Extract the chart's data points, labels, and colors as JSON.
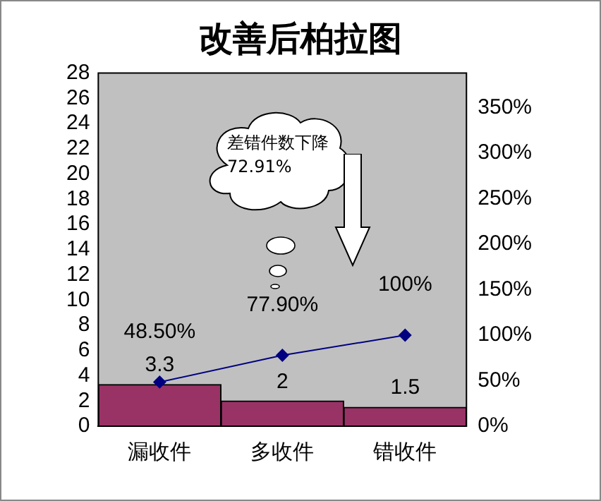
{
  "chart_data": {
    "type": "bar",
    "title": "改善后柏拉图",
    "categories": [
      "漏收件",
      "多收件",
      "错收件"
    ],
    "series": [
      {
        "color": "#993366",
        "values": [
          3.3,
          2,
          1.5
        ],
        "value_labels": [
          "3.3",
          "2",
          "1.5"
        ]
      },
      {
        "type": "line",
        "axis": "y2",
        "color": "#000080",
        "values": [
          48.5,
          77.9,
          100
        ],
        "value_labels": [
          "48.50%",
          "77.90%",
          "100%"
        ],
        "marker": "diamond"
      }
    ],
    "ylim": [
      0,
      28
    ],
    "yticks": [
      0,
      2,
      4,
      6,
      8,
      10,
      12,
      14,
      16,
      18,
      20,
      22,
      24,
      26,
      28
    ],
    "y2lim": [
      0,
      388
    ],
    "y2ticks": [
      {
        "value": 0,
        "label": "0%"
      },
      {
        "value": 50,
        "label": "50%"
      },
      {
        "value": 100,
        "label": "100%"
      },
      {
        "value": 150,
        "label": "150%"
      },
      {
        "value": 200,
        "label": "200%"
      },
      {
        "value": 250,
        "label": "250%"
      },
      {
        "value": 300,
        "label": "300%"
      },
      {
        "value": 350,
        "label": "350%"
      }
    ],
    "annotations": [
      "差错件数下降 72.91%"
    ],
    "grid": false,
    "legend": false
  }
}
